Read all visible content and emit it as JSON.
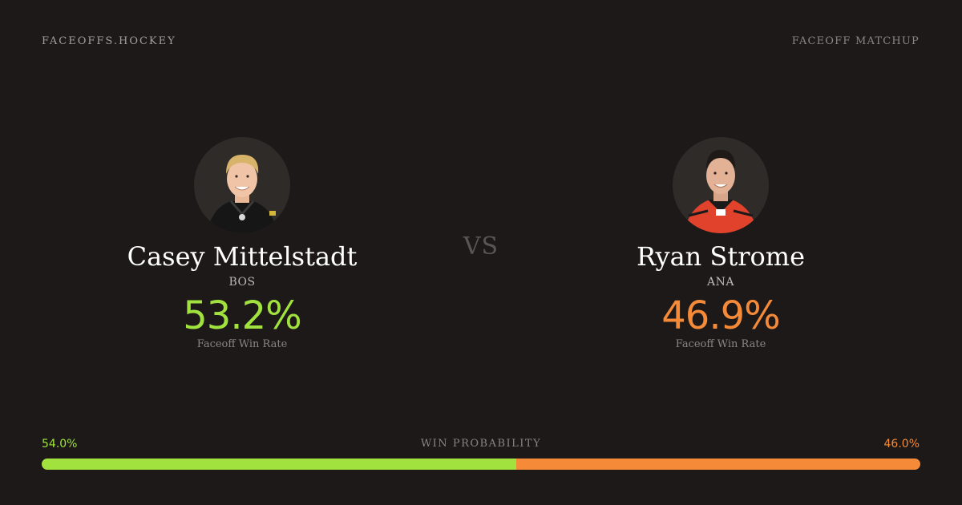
{
  "header": {
    "brand": "FACEOFFS.HOCKEY",
    "tagline": "FACEOFF MATCHUP"
  },
  "vs_label": "VS",
  "players": [
    {
      "name": "Casey Mittelstadt",
      "team": "BOS",
      "win_rate": "53.2%",
      "win_rate_label": "Faceoff Win Rate",
      "color": "#a1e23e",
      "jersey_color": "#161616"
    },
    {
      "name": "Ryan Strome",
      "team": "ANA",
      "win_rate": "46.9%",
      "win_rate_label": "Faceoff Win Rate",
      "color": "#f58a38",
      "jersey_color": "#e0422c"
    }
  ],
  "win_probability": {
    "title": "WIN PROBABILITY",
    "left_label": "54.0%",
    "right_label": "46.0%",
    "left_value": 54.0,
    "right_value": 46.0,
    "left_color": "#a1e23e",
    "right_color": "#f58a38"
  }
}
